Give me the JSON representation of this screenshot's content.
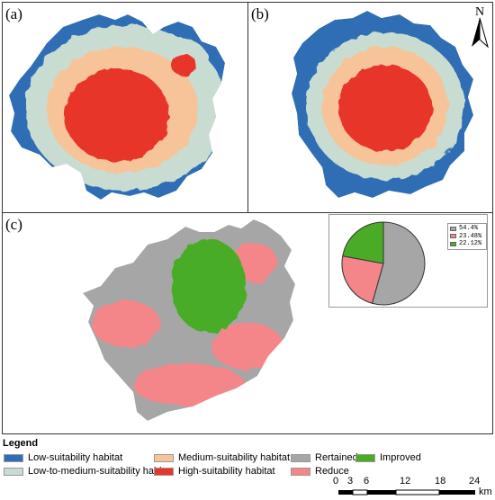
{
  "panels": {
    "a": "(a)",
    "b": "(b)",
    "c": "(c)"
  },
  "north": "N",
  "colors": {
    "low": "#2f6eb5",
    "low_medium": "#c8dcd2",
    "medium": "#f7c49a",
    "high": "#e8352a",
    "retained": "#a6a6a6",
    "improved": "#4aac26",
    "reduce": "#f4868a"
  },
  "legend": {
    "title": "Legend",
    "items": [
      {
        "label": "Low-suitability habitat",
        "color": "#2f6eb5"
      },
      {
        "label": "Low-to-medium-suitability habitat",
        "color": "#c8dcd2"
      },
      {
        "label": "Medium-suitability habitat",
        "color": "#f7c49a"
      },
      {
        "label": "High-suitability habitat",
        "color": "#e8352a"
      },
      {
        "label": "Rertained",
        "color": "#a6a6a6"
      },
      {
        "label": "Reduce",
        "color": "#f4868a"
      },
      {
        "label": "Improved",
        "color": "#4aac26"
      }
    ]
  },
  "pie": {
    "slices": [
      {
        "label": "54.4%",
        "value": 54.4,
        "color": "#a6a6a6"
      },
      {
        "label": "23.48%",
        "value": 23.48,
        "color": "#f4868a"
      },
      {
        "label": "22.12%",
        "value": 22.12,
        "color": "#4aac26"
      }
    ]
  },
  "scale": {
    "ticks": [
      "0",
      "3",
      "6",
      "12",
      "18",
      "24"
    ],
    "unit": "km"
  }
}
